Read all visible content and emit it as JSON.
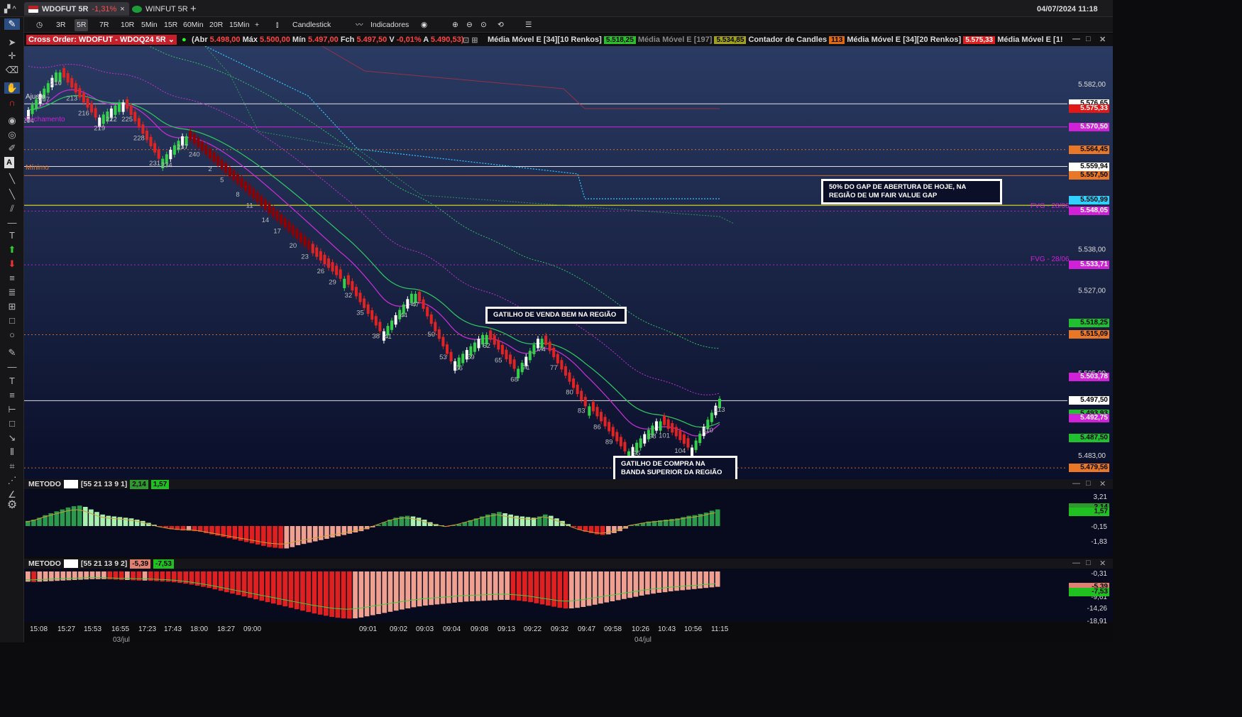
{
  "window": {
    "datetime": "04/07/2024 11:18"
  },
  "tabs": [
    {
      "label": "WDOFUT 5R",
      "change": "-1,31%",
      "close": "×"
    },
    {
      "label": "WINFUT 5R"
    }
  ],
  "tab_add": "+",
  "toolbar": {
    "periods": [
      "3R",
      "5R",
      "7R",
      "10R",
      "5Min",
      "15R",
      "60Min",
      "20R",
      "15Min"
    ],
    "selected": "5R",
    "plus": "+",
    "candlestick": "Candlestick",
    "indicators": "Indicadores"
  },
  "info": {
    "cross_order": "Cross Order: WDOFUT - WDOQ24 5R",
    "abr_label": "(Abr",
    "abr": "5.498,00",
    "max_label": "Máx",
    "max": "5.500,00",
    "min_label": "Mín",
    "min": "5.497,00",
    "fch_label": "Fch",
    "fch": "5.497,50",
    "v_label": "V",
    "v": "-0,01%",
    "a_label": "A",
    "a": "5.490,53)",
    "mm1_label": "Média Móvel E [34][10 Renkos]",
    "mm1": "5.518,25",
    "mm2_label": "Média Móvel E [197]",
    "mm2": "5.534,85",
    "cc_label": "Contador de Candles",
    "cc": "113",
    "mm3_label": "Média Móvel E [34][20 Renkos]",
    "mm3": "5.575,33",
    "mm4_label": "Média Móvel E [1!"
  },
  "price_axis": [
    "5.582,00",
    "5.538,00",
    "5.527,00",
    "5.505,00",
    "5.483,00"
  ],
  "price_labels": [
    {
      "v": "5.576,65",
      "bg": "#ffffff",
      "fg": "#000"
    },
    {
      "v": "5.575,33",
      "bg": "#e01818",
      "fg": "#fff"
    },
    {
      "v": "5.570,50",
      "bg": "#d020d8",
      "fg": "#fff"
    },
    {
      "v": "5.564,45",
      "bg": "#e87828",
      "fg": "#000"
    },
    {
      "v": "5.559,94",
      "bg": "#ffffff",
      "fg": "#000"
    },
    {
      "v": "5.557,50",
      "bg": "#e87828",
      "fg": "#000"
    },
    {
      "v": "5.550,99",
      "bg": "#30d0ff",
      "fg": "#000"
    },
    {
      "v": "5.548,05",
      "bg": "#d020d8",
      "fg": "#fff"
    },
    {
      "v": "5.533,71",
      "bg": "#d020d8",
      "fg": "#fff"
    },
    {
      "v": "5.518,25",
      "bg": "#20c030",
      "fg": "#000"
    },
    {
      "v": "5.515,09",
      "bg": "#e87828",
      "fg": "#000"
    },
    {
      "v": "5.503,78",
      "bg": "#d020d8",
      "fg": "#fff"
    },
    {
      "v": "5.497,50",
      "bg": "#ffffff",
      "fg": "#000"
    },
    {
      "v": "5.493,93",
      "bg": "#20c030",
      "fg": "#000"
    },
    {
      "v": "5.492,75",
      "bg": "#d020d8",
      "fg": "#fff"
    },
    {
      "v": "5.487,50",
      "bg": "#20c030",
      "fg": "#000"
    },
    {
      "v": "5.479,56",
      "bg": "#e87828",
      "fg": "#000"
    }
  ],
  "chart_labels": {
    "ajuste": "Ajuste",
    "fechamento": "Fechamento",
    "minimo": "Mínimo",
    "fvg1": "FVG - 28/06",
    "fvg2": "FVG - 28/06"
  },
  "candle_numbers": [
    "204",
    "207",
    "210",
    "213",
    "216",
    "219",
    "222",
    "225",
    "228",
    "231",
    "234",
    "237",
    "240",
    "2",
    "5",
    "8",
    "11",
    "14",
    "17",
    "20",
    "23",
    "26",
    "29",
    "32",
    "35",
    "38",
    "41",
    "44",
    "47",
    "50",
    "53",
    "56",
    "59",
    "62",
    "65",
    "68",
    "71",
    "74",
    "77",
    "80",
    "83",
    "86",
    "89",
    "92",
    "95",
    "98",
    "101",
    "104",
    "107",
    "110",
    "113"
  ],
  "annotations": {
    "gap": "50% DO GAP DE ABERTURA DE HOJE, NA REGIÃO DE UM FAIR VALUE GAP",
    "sell": "GATILHO DE VENDA BEM NA REGIÃO",
    "buy": "GATILHO DE COMPRA NA BANDA SUPERIOR DA REGIÃO"
  },
  "panel1": {
    "title": "METODO",
    "params": "[55 21 13 9 1]",
    "v1": "2,14",
    "v2": "1,57",
    "axis": [
      "3,21",
      "-0,15",
      "-1,83"
    ],
    "lbl1": "2,14",
    "lbl2": "1,57",
    "bars": [
      0.8,
      1.0,
      1.3,
      1.7,
      2.0,
      2.3,
      2.6,
      2.9,
      3.1,
      3.2,
      3.0,
      2.6,
      2.2,
      1.8,
      1.6,
      1.5,
      1.4,
      1.3,
      1.2,
      1.0,
      0.8,
      0.5,
      0.2,
      -0.1,
      -0.3,
      -0.5,
      -0.6,
      -0.7,
      -0.7,
      -0.8,
      -0.9,
      -1.1,
      -1.3,
      -1.5,
      -1.7,
      -1.9,
      -2.1,
      -2.3,
      -2.5,
      -2.7,
      -2.9,
      -3.1,
      -3.3,
      -3.4,
      -3.5,
      -3.5,
      -3.3,
      -3.0,
      -2.8,
      -2.6,
      -2.4,
      -2.2,
      -2.0,
      -1.8,
      -1.6,
      -1.4,
      -1.2,
      -1.0,
      -0.8,
      -0.5,
      -0.2,
      0.2,
      0.6,
      1.0,
      1.3,
      1.5,
      1.6,
      1.5,
      1.3,
      1.0,
      0.6,
      0.3,
      0.1,
      -0.1,
      0.1,
      0.3,
      0.6,
      0.9,
      1.2,
      1.5,
      1.8,
      2.0,
      2.2,
      2.0,
      1.8,
      1.6,
      1.5,
      1.4,
      1.3,
      1.5,
      1.8,
      1.6,
      1.2,
      0.8,
      0.3,
      -0.2,
      -0.6,
      -0.9,
      -1.1,
      -1.3,
      -1.4,
      -1.3,
      -1.1,
      -0.8,
      -0.4,
      0.1,
      0.3,
      0.5,
      0.7,
      0.8,
      0.9,
      1.0,
      1.1,
      1.2,
      1.4,
      1.6,
      1.7,
      1.9,
      2.1,
      2.4,
      2.6
    ]
  },
  "panel2": {
    "title": "METODO",
    "params": "[55 21 13 9 2]",
    "v1": "-5,39",
    "v2": "-7,53",
    "axis": [
      "-0,31",
      "-9,61",
      "-14,26",
      "-18,91"
    ],
    "lbl1": "-5,39",
    "lbl2": "-7,53",
    "bars": [
      -3.6,
      -3.7,
      -3.6,
      -3.5,
      -3.4,
      -3.3,
      -3.2,
      -3.1,
      -3.0,
      -2.9,
      -2.8,
      -2.7,
      -2.7,
      -2.7,
      -2.8,
      -2.9,
      -3.0,
      -3.0,
      -3.1,
      -3.2,
      -3.2,
      -3.3,
      -3.4,
      -3.5,
      -3.6,
      -3.8,
      -4.0,
      -4.3,
      -4.6,
      -5.0,
      -5.4,
      -5.8,
      -6.3,
      -6.8,
      -7.3,
      -7.8,
      -8.3,
      -8.8,
      -9.3,
      -9.8,
      -10.3,
      -10.8,
      -11.3,
      -11.8,
      -12.3,
      -12.8,
      -13.3,
      -13.8,
      -14.3,
      -14.8,
      -15.2,
      -15.6,
      -16.0,
      -16.3,
      -16.5,
      -16.6,
      -16.5,
      -16.2,
      -15.8,
      -15.4,
      -15.0,
      -14.6,
      -14.2,
      -13.8,
      -13.4,
      -13.0,
      -12.6,
      -12.3,
      -12.0,
      -11.8,
      -11.6,
      -11.4,
      -11.2,
      -11.0,
      -10.8,
      -10.6,
      -10.5,
      -10.4,
      -10.3,
      -10.2,
      -10.1,
      -10.0,
      -10.0,
      -10.1,
      -10.3,
      -10.5,
      -10.8,
      -11.2,
      -11.6,
      -12.0,
      -12.4,
      -12.8,
      -13.0,
      -13.0,
      -12.8,
      -12.5,
      -12.1,
      -11.7,
      -11.3,
      -10.9,
      -10.5,
      -10.1,
      -9.7,
      -9.3,
      -8.9,
      -8.5,
      -8.1,
      -7.8,
      -7.5,
      -7.3,
      -7.0,
      -6.8,
      -6.6,
      -6.4,
      -6.2,
      -6.0,
      -5.8,
      -5.6,
      -5.4
    ]
  },
  "time_axis": [
    "15:08",
    "15:27",
    "15:53",
    "16:55",
    "17:23",
    "17:43",
    "18:00",
    "18:27",
    "09:00",
    "09:01",
    "09:02",
    "09:03",
    "09:04",
    "09:08",
    "09:13",
    "09:22",
    "09:32",
    "09:47",
    "09:58",
    "10:26",
    "10:43",
    "10:56",
    "11:15"
  ],
  "dates": [
    "03/jul",
    "04/jul"
  ],
  "colors": {
    "bull": "#35d04a",
    "bull_light": "#ffffff",
    "bear": "#e02424",
    "bear_dark": "#900000",
    "ema_green": "#2fc060",
    "ema_magenta": "#c030d0"
  }
}
